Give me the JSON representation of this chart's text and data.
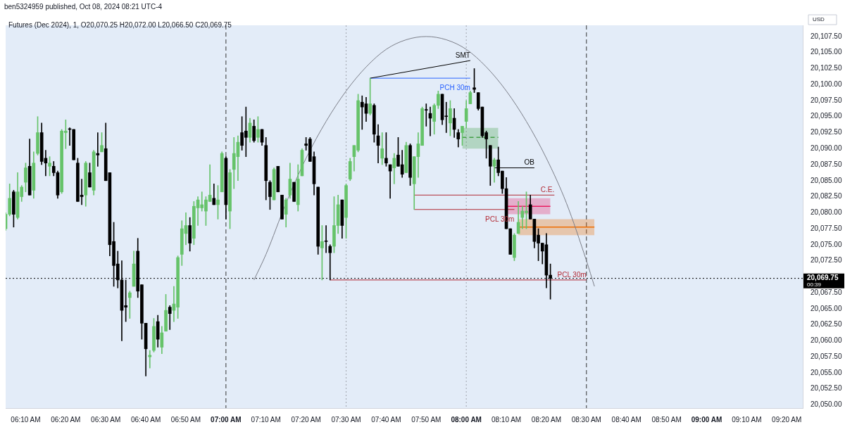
{
  "chart_data": {
    "type": "candlestick",
    "title": "ben5324959 published, Oct 08, 2024 08:21 UTC-4",
    "subtitle": "Futures (Dec 2024), 1, O20,070.25 H20,072.00 L20,066.50 C20,069.75",
    "ylabel": "USD",
    "x": [
      "2024-10-08T06:05",
      "2024-10-08T06:06",
      "2024-10-08T06:07",
      "2024-10-08T06:08",
      "2024-10-08T06:09",
      "2024-10-08T06:10",
      "2024-10-08T06:11",
      "2024-10-08T06:12",
      "2024-10-08T06:13",
      "2024-10-08T06:14",
      "2024-10-08T06:15",
      "2024-10-08T06:16",
      "2024-10-08T06:17",
      "2024-10-08T06:18",
      "2024-10-08T06:19",
      "2024-10-08T06:20",
      "2024-10-08T06:21",
      "2024-10-08T06:22",
      "2024-10-08T06:23",
      "2024-10-08T06:24",
      "2024-10-08T06:25",
      "2024-10-08T06:26",
      "2024-10-08T06:27",
      "2024-10-08T06:28",
      "2024-10-08T06:29",
      "2024-10-08T06:30",
      "2024-10-08T06:31",
      "2024-10-08T06:32",
      "2024-10-08T06:33",
      "2024-10-08T06:34",
      "2024-10-08T06:35",
      "2024-10-08T06:36",
      "2024-10-08T06:37",
      "2024-10-08T06:38",
      "2024-10-08T06:39",
      "2024-10-08T06:40",
      "2024-10-08T06:41",
      "2024-10-08T06:42",
      "2024-10-08T06:43",
      "2024-10-08T06:44",
      "2024-10-08T06:45",
      "2024-10-08T06:46",
      "2024-10-08T06:47",
      "2024-10-08T06:48",
      "2024-10-08T06:49",
      "2024-10-08T06:50",
      "2024-10-08T06:51",
      "2024-10-08T06:52",
      "2024-10-08T06:53",
      "2024-10-08T06:54",
      "2024-10-08T06:55",
      "2024-10-08T06:56",
      "2024-10-08T06:57",
      "2024-10-08T06:58",
      "2024-10-08T06:59",
      "2024-10-08T07:00",
      "2024-10-08T07:01",
      "2024-10-08T07:02",
      "2024-10-08T07:03",
      "2024-10-08T07:04",
      "2024-10-08T07:05",
      "2024-10-08T07:06",
      "2024-10-08T07:07",
      "2024-10-08T07:08",
      "2024-10-08T07:09",
      "2024-10-08T07:10",
      "2024-10-08T07:11",
      "2024-10-08T07:12",
      "2024-10-08T07:13",
      "2024-10-08T07:14",
      "2024-10-08T07:15",
      "2024-10-08T07:16",
      "2024-10-08T07:17",
      "2024-10-08T07:18",
      "2024-10-08T07:19",
      "2024-10-08T07:20",
      "2024-10-08T07:21",
      "2024-10-08T07:22",
      "2024-10-08T07:23",
      "2024-10-08T07:24",
      "2024-10-08T07:25",
      "2024-10-08T07:26",
      "2024-10-08T07:27",
      "2024-10-08T07:28",
      "2024-10-08T07:29",
      "2024-10-08T07:30",
      "2024-10-08T07:31",
      "2024-10-08T07:32",
      "2024-10-08T07:33",
      "2024-10-08T07:34",
      "2024-10-08T07:35",
      "2024-10-08T07:36",
      "2024-10-08T07:37",
      "2024-10-08T07:38",
      "2024-10-08T07:39",
      "2024-10-08T07:40",
      "2024-10-08T07:41",
      "2024-10-08T07:42",
      "2024-10-08T07:43",
      "2024-10-08T07:44",
      "2024-10-08T07:45",
      "2024-10-08T07:46",
      "2024-10-08T07:47",
      "2024-10-08T07:48",
      "2024-10-08T07:49",
      "2024-10-08T07:50",
      "2024-10-08T07:51",
      "2024-10-08T07:52",
      "2024-10-08T07:53",
      "2024-10-08T07:54",
      "2024-10-08T07:55",
      "2024-10-08T07:56",
      "2024-10-08T07:57",
      "2024-10-08T07:58",
      "2024-10-08T07:59",
      "2024-10-08T08:00",
      "2024-10-08T08:01",
      "2024-10-08T08:02",
      "2024-10-08T08:03",
      "2024-10-08T08:04",
      "2024-10-08T08:05",
      "2024-10-08T08:06",
      "2024-10-08T08:07",
      "2024-10-08T08:08",
      "2024-10-08T08:09",
      "2024-10-08T08:10",
      "2024-10-08T08:11",
      "2024-10-08T08:12",
      "2024-10-08T08:13",
      "2024-10-08T08:14",
      "2024-10-08T08:15",
      "2024-10-08T08:16",
      "2024-10-08T08:17",
      "2024-10-08T08:18",
      "2024-10-08T08:19",
      "2024-10-08T08:20",
      "2024-10-08T08:21"
    ],
    "ohlc": [
      [
        20077.5,
        20080.0,
        20077.25,
        20079.75
      ],
      [
        20079.75,
        20084.5,
        20079.5,
        20082.25
      ],
      [
        20083.25,
        20083.5,
        20077.75,
        20079.75
      ],
      [
        20079.25,
        20086.25,
        20079.0,
        20083.25
      ],
      [
        20082.5,
        20084.25,
        20081.75,
        20084.0
      ],
      [
        20084.75,
        20087.75,
        20083.25,
        20087.0
      ],
      [
        20087.25,
        20091.5,
        20082.75,
        20082.75
      ],
      [
        20083.5,
        20089.5,
        20082.25,
        20087.75
      ],
      [
        20089.25,
        20095.0,
        20089.0,
        20092.5
      ],
      [
        20092.5,
        20094.0,
        20087.5,
        20088.0
      ],
      [
        20088.5,
        20089.75,
        20085.75,
        20087.75
      ],
      [
        20087.25,
        20088.75,
        20085.75,
        20087.75
      ],
      [
        20087.25,
        20088.0,
        20085.75,
        20086.25
      ],
      [
        20086.25,
        20086.5,
        20082.25,
        20082.75
      ],
      [
        20083.25,
        20093.0,
        20083.0,
        20092.75
      ],
      [
        20092.5,
        20094.5,
        20090.0,
        20092.75
      ],
      [
        20093.0,
        20093.25,
        20090.5,
        20093.0
      ],
      [
        20093.0,
        20093.0,
        20088.25,
        20088.25
      ],
      [
        20087.75,
        20088.5,
        20081.75,
        20081.75
      ],
      [
        20082.75,
        20085.25,
        20081.25,
        20082.5
      ],
      [
        20082.75,
        20088.0,
        20081.0,
        20087.75
      ],
      [
        20086.25,
        20087.75,
        20084.0,
        20084.0
      ],
      [
        20083.5,
        20089.75,
        20082.75,
        20089.5
      ],
      [
        20089.25,
        20092.5,
        20087.25,
        20089.0
      ],
      [
        20089.5,
        20092.5,
        20089.5,
        20090.5
      ],
      [
        20090.0,
        20094.0,
        20085.0,
        20085.0
      ],
      [
        20086.25,
        20086.25,
        20073.25,
        20075.0
      ],
      [
        20075.5,
        20078.5,
        20068.5,
        20071.75
      ],
      [
        20072.0,
        20074.0,
        20068.25,
        20069.5
      ],
      [
        20069.5,
        20072.5,
        20060.0,
        20064.75
      ],
      [
        20065.5,
        20069.5,
        20063.0,
        20065.25
      ],
      [
        20066.75,
        20067.75,
        20063.5,
        20067.5
      ],
      [
        20068.5,
        20074.0,
        20068.5,
        20072.0
      ],
      [
        20074.0,
        20076.0,
        20066.75,
        20067.75
      ],
      [
        20068.75,
        20068.75,
        20060.25,
        20062.75
      ],
      [
        20062.75,
        20062.75,
        20054.5,
        20058.75
      ],
      [
        20057.5,
        20058.5,
        20055.75,
        20057.75
      ],
      [
        20058.5,
        20063.5,
        20058.25,
        20062.25
      ],
      [
        20063.0,
        20064.0,
        20059.0,
        20060.25
      ],
      [
        20059.0,
        20062.25,
        20058.0,
        20061.25
      ],
      [
        20061.5,
        20067.25,
        20061.5,
        20064.75
      ],
      [
        20065.25,
        20065.5,
        20061.75,
        20064.25
      ],
      [
        20064.75,
        20068.5,
        20063.0,
        20065.75
      ],
      [
        20065.25,
        20073.25,
        20063.5,
        20073.0
      ],
      [
        20073.5,
        20078.75,
        20071.75,
        20077.5
      ],
      [
        20076.75,
        20080.0,
        20075.0,
        20078.0
      ],
      [
        20078.0,
        20079.25,
        20074.0,
        20075.25
      ],
      [
        20076.0,
        20081.75,
        20075.0,
        20081.0
      ],
      [
        20080.75,
        20082.5,
        20078.0,
        20082.0
      ],
      [
        20080.75,
        20083.25,
        20080.25,
        20081.25
      ],
      [
        20080.25,
        20082.5,
        20078.0,
        20082.0
      ],
      [
        20081.75,
        20087.5,
        20081.75,
        20082.75
      ],
      [
        20082.25,
        20084.5,
        20081.25,
        20081.25
      ],
      [
        20081.25,
        20084.25,
        20079.0,
        20082.0
      ],
      [
        20083.25,
        20089.5,
        20083.25,
        20089.25
      ],
      [
        20088.5,
        20088.75,
        20079.0,
        20081.25
      ],
      [
        20080.25,
        20086.75,
        20077.5,
        20086.25
      ],
      [
        20086.75,
        20091.75,
        20083.75,
        20089.25
      ],
      [
        20088.75,
        20092.0,
        20085.0,
        20091.0
      ],
      [
        20092.5,
        20095.0,
        20089.75,
        20090.5
      ],
      [
        20092.75,
        20096.5,
        20088.75,
        20091.75
      ],
      [
        20091.75,
        20094.75,
        20091.0,
        20094.0
      ],
      [
        20093.5,
        20094.5,
        20091.0,
        20091.25
      ],
      [
        20091.75,
        20095.0,
        20091.0,
        20093.0
      ],
      [
        20093.0,
        20093.0,
        20090.5,
        20091.0
      ],
      [
        20090.5,
        20091.75,
        20082.0,
        20085.0
      ],
      [
        20084.75,
        20085.0,
        20080.5,
        20082.5
      ],
      [
        20082.0,
        20087.0,
        20082.0,
        20086.75
      ],
      [
        20087.25,
        20087.25,
        20083.25,
        20083.25
      ],
      [
        20082.75,
        20082.75,
        20079.0,
        20079.0
      ],
      [
        20079.75,
        20082.25,
        20077.75,
        20082.0
      ],
      [
        20082.75,
        20087.75,
        20082.25,
        20085.25
      ],
      [
        20084.75,
        20084.75,
        20081.75,
        20081.75
      ],
      [
        20081.25,
        20087.5,
        20080.25,
        20085.25
      ],
      [
        20085.75,
        20090.0,
        20085.75,
        20089.75
      ],
      [
        20090.75,
        20091.75,
        20089.75,
        20090.5
      ],
      [
        20091.5,
        20091.75,
        20088.0,
        20088.0
      ],
      [
        20088.75,
        20089.5,
        20082.75,
        20084.5
      ],
      [
        20084.0,
        20084.0,
        20073.5,
        20074.75
      ],
      [
        20074.5,
        20078.0,
        20069.5,
        20075.5
      ],
      [
        20075.5,
        20078.0,
        20073.75,
        20075.5
      ],
      [
        20074.75,
        20075.0,
        20069.5,
        20073.75
      ],
      [
        20074.75,
        20082.5,
        20073.75,
        20078.0
      ],
      [
        20078.0,
        20082.75,
        20076.75,
        20081.25
      ],
      [
        20082.0,
        20082.0,
        20076.0,
        20078.0
      ],
      [
        20079.25,
        20084.5,
        20076.0,
        20084.25
      ],
      [
        20085.25,
        20088.5,
        20085.0,
        20088.0
      ],
      [
        20088.75,
        20090.5,
        20086.5,
        20090.5
      ],
      [
        20089.75,
        20098.5,
        20089.5,
        20097.5
      ],
      [
        20097.25,
        20098.25,
        20093.0,
        20096.5
      ],
      [
        20097.0,
        20098.0,
        20094.25,
        20095.5
      ],
      [
        20095.5,
        20101.0,
        20095.25,
        20097.0
      ],
      [
        20096.75,
        20097.0,
        20091.0,
        20092.25
      ],
      [
        20092.0,
        20093.75,
        20087.75,
        20090.5
      ],
      [
        20088.5,
        20092.5,
        20087.5,
        20090.0
      ],
      [
        20088.5,
        20092.5,
        20087.25,
        20087.75
      ],
      [
        20087.5,
        20087.5,
        20082.25,
        20086.5
      ],
      [
        20087.0,
        20089.25,
        20084.5,
        20088.5
      ],
      [
        20089.0,
        20091.75,
        20087.25,
        20087.25
      ],
      [
        20087.5,
        20089.75,
        20085.5,
        20086.0
      ],
      [
        20086.25,
        20091.0,
        20086.25,
        20090.5
      ],
      [
        20090.5,
        20090.75,
        20084.25,
        20085.5
      ],
      [
        20084.5,
        20088.75,
        20080.5,
        20088.75
      ],
      [
        20088.75,
        20092.5,
        20085.5,
        20090.75
      ],
      [
        20090.5,
        20096.5,
        20090.5,
        20096.25
      ],
      [
        20096.0,
        20097.0,
        20093.5,
        20096.0
      ],
      [
        20095.5,
        20096.5,
        20092.0,
        20094.75
      ],
      [
        20094.25,
        20097.0,
        20092.25,
        20096.75
      ],
      [
        20096.75,
        20099.0,
        20096.25,
        20098.5
      ],
      [
        20098.5,
        20098.5,
        20093.75,
        20094.5
      ],
      [
        20095.0,
        20097.25,
        20092.5,
        20095.0
      ],
      [
        20094.0,
        20097.5,
        20092.0,
        20096.25
      ],
      [
        20094.75,
        20096.25,
        20091.75,
        20093.0
      ],
      [
        20092.5,
        20093.0,
        20090.25,
        20091.5
      ],
      [
        20092.5,
        20093.5,
        20090.5,
        20093.5
      ],
      [
        20094.25,
        20097.5,
        20093.25,
        20096.25
      ],
      [
        20097.0,
        20099.0,
        20097.0,
        20098.75
      ],
      [
        20099.5,
        20102.5,
        20098.75,
        20099.25
      ],
      [
        20098.75,
        20098.75,
        20096.0,
        20096.25
      ],
      [
        20096.5,
        20096.5,
        20091.75,
        20092.0
      ],
      [
        20092.5,
        20092.75,
        20088.5,
        20091.5
      ],
      [
        20090.5,
        20090.5,
        20084.25,
        20087.25
      ],
      [
        20087.25,
        20088.5,
        20084.75,
        20088.25
      ],
      [
        20088.25,
        20090.25,
        20085.75,
        20086.25
      ],
      [
        20086.5,
        20086.5,
        20083.0,
        20083.75
      ],
      [
        20083.75,
        20085.5,
        20077.5,
        20077.5
      ],
      [
        20077.5,
        20077.5,
        20073.5,
        20073.5
      ],
      [
        20073.0,
        20076.75,
        20072.5,
        20076.5
      ],
      [
        20076.75,
        20081.75,
        20076.75,
        20078.5
      ],
      [
        20079.25,
        20081.0,
        20077.5,
        20080.25
      ],
      [
        20080.0,
        20083.25,
        20077.5,
        20080.25
      ],
      [
        20081.25,
        20082.75,
        20079.0,
        20079.0
      ],
      [
        20079.0,
        20079.0,
        20074.5,
        20075.5
      ],
      [
        20076.5,
        20077.5,
        20072.5,
        20075.25
      ],
      [
        20075.25,
        20075.25,
        20072.0,
        20074.0
      ],
      [
        20075.0,
        20076.75,
        20068.25,
        20070.25
      ],
      [
        20070.25,
        20072.0,
        20066.5,
        20069.75
      ]
    ],
    "colors": [
      "#66c36a",
      "#66c36a",
      "#000000",
      "#66c36a",
      "#66c36a",
      "#66c36a",
      "#000000",
      "#66c36a",
      "#66c36a",
      "#000000",
      "#000000",
      "#66c36a",
      "#000000",
      "#000000",
      "#66c36a",
      "#66c36a",
      "#000000",
      "#000000",
      "#000000",
      "#000000",
      "#66c36a",
      "#000000",
      "#66c36a",
      "#000000",
      "#66c36a",
      "#000000",
      "#000000",
      "#000000",
      "#000000",
      "#000000",
      "#000000",
      "#66c36a",
      "#66c36a",
      "#000000",
      "#000000",
      "#000000",
      "#66c36a",
      "#66c36a",
      "#000000",
      "#66c36a",
      "#66c36a",
      "#000000",
      "#66c36a",
      "#66c36a",
      "#66c36a",
      "#66c36a",
      "#000000",
      "#66c36a",
      "#66c36a",
      "#66c36a",
      "#66c36a",
      "#66c36a",
      "#000000",
      "#66c36a",
      "#66c36a",
      "#000000",
      "#66c36a",
      "#66c36a",
      "#66c36a",
      "#000000",
      "#000000",
      "#66c36a",
      "#000000",
      "#66c36a",
      "#000000",
      "#000000",
      "#000000",
      "#66c36a",
      "#000000",
      "#000000",
      "#66c36a",
      "#66c36a",
      "#000000",
      "#66c36a",
      "#66c36a",
      "#000000",
      "#000000",
      "#000000",
      "#000000",
      "#66c36a",
      "#000000",
      "#000000",
      "#66c36a",
      "#66c36a",
      "#000000",
      "#66c36a",
      "#66c36a",
      "#66c36a",
      "#66c36a",
      "#000000",
      "#000000",
      "#66c36a",
      "#000000",
      "#000000",
      "#66c36a",
      "#000000",
      "#000000",
      "#66c36a",
      "#000000",
      "#000000",
      "#66c36a",
      "#000000",
      "#66c36a",
      "#66c36a",
      "#66c36a",
      "#000000",
      "#000000",
      "#66c36a",
      "#66c36a",
      "#000000",
      "#000000",
      "#66c36a",
      "#000000",
      "#000000",
      "#66c36a",
      "#66c36a",
      "#66c36a",
      "#000000",
      "#000000",
      "#000000",
      "#000000",
      "#000000",
      "#66c36a",
      "#000000",
      "#000000",
      "#000000",
      "#000000",
      "#66c36a",
      "#66c36a",
      "#66c36a",
      "#66c36a",
      "#000000",
      "#000000",
      "#000000",
      "#000000",
      "#000000",
      "#000000"
    ],
    "series": [
      {
        "type": "line",
        "color": "#43a047",
        "x": [
          "2024-10-08T07:59",
          "2024-10-08T08:08"
        ],
        "values": [
          20091.75,
          20091.75
        ],
        "lower": [
          20090.0,
          20090.0
        ],
        "upper": [
          20093.25,
          20093.25
        ],
        "line_style": "dashed"
      },
      {
        "type": "line",
        "color": "#e91e63",
        "x": [
          "2024-10-08T08:10",
          "2024-10-08T08:21"
        ],
        "values": [
          20081.0,
          20081.0
        ],
        "lower": [
          20079.75,
          20079.75
        ],
        "upper": [
          20082.25,
          20082.25
        ]
      },
      {
        "type": "line",
        "color": "#ef6c00",
        "x": [
          "2024-10-08T08:13",
          "2024-10-08T08:32"
        ],
        "values": [
          20077.75,
          20077.75
        ],
        "lower": [
          20076.5,
          20076.5
        ],
        "upper": [
          20079.0,
          20079.0
        ]
      },
      {
        "type": "line",
        "color": "#7b7e88",
        "x": [
          "2024-10-08T07:07",
          "2024-10-08T07:10",
          "2024-10-08T07:15",
          "2024-10-08T07:20",
          "2024-10-08T07:25",
          "2024-10-08T07:30",
          "2024-10-08T07:35",
          "2024-10-08T07:40",
          "2024-10-08T07:45",
          "2024-10-08T07:50",
          "2024-10-08T07:55",
          "2024-10-08T08:00",
          "2024-10-08T08:05",
          "2024-10-08T08:10",
          "2024-10-08T08:15",
          "2024-10-08T08:20",
          "2024-10-08T08:25",
          "2024-10-08T08:30",
          "2024-10-08T08:32"
        ],
        "values": [
          20069.5,
          20073.5,
          20081.5,
          20088.5,
          20094.25,
          20099.0,
          20102.75,
          20105.5,
          20107.0,
          20107.5,
          20107.0,
          20105.5,
          20102.75,
          20099.0,
          20094.25,
          20088.5,
          20081.5,
          20072.5,
          20068.5
        ]
      },
      {
        "type": "line",
        "name": "SMT",
        "color": "#000000",
        "x": [
          "2024-10-08T07:36",
          "2024-10-08T08:01"
        ],
        "values": [
          20101.0,
          20103.75
        ]
      },
      {
        "type": "line",
        "name": "PCH 30m",
        "color": "#2962ff",
        "x": [
          "2024-10-08T07:36",
          "2024-10-08T08:01"
        ],
        "values": [
          20101.0,
          20101.0
        ]
      },
      {
        "type": "line",
        "name": "OB",
        "color": "#000000",
        "x": [
          "2024-10-08T08:07",
          "2024-10-08T08:17"
        ],
        "values": [
          20087.0,
          20087.0
        ]
      },
      {
        "type": "line",
        "name": "C.E.",
        "color": "#b22833",
        "x": [
          "2024-10-08T07:47",
          "2024-10-08T08:22"
        ],
        "values": [
          20082.75,
          20082.75
        ]
      },
      {
        "type": "line",
        "name": "PCL 30m",
        "color": "#b22833",
        "x": [
          "2024-10-08T07:47",
          "2024-10-08T08:12"
        ],
        "values": [
          20080.5,
          20080.5
        ]
      },
      {
        "type": "line",
        "name": "PCL 30m",
        "color": "#b22833",
        "x": [
          "2024-10-08T07:26",
          "2024-10-08T08:30"
        ],
        "values": [
          20069.5,
          20069.5
        ]
      }
    ],
    "ref_lines": [
      {
        "axis": "x",
        "value": "2024-10-08T07:00",
        "color": "#333333",
        "line_style": "dashed"
      },
      {
        "axis": "x",
        "value": "2024-10-08T07:30",
        "color": "#a0a4ad",
        "line_style": "dotted"
      },
      {
        "axis": "x",
        "value": "2024-10-08T08:00",
        "color": "#a0a4ad",
        "line_style": "dotted"
      },
      {
        "axis": "x",
        "value": "2024-10-08T08:30",
        "color": "#333333",
        "line_style": "dashed"
      },
      {
        "axis": "y",
        "value": 20069.75,
        "label": "20,069.75",
        "color": "#000000",
        "line_style": "dotted"
      }
    ],
    "annotations": [
      "00:39"
    ],
    "xlim": [
      "2024-10-08T06:05",
      "2024-10-08T09:24"
    ],
    "xticks": [
      {
        "value": "2024-10-08T06:10",
        "label": "06:10 AM"
      },
      {
        "value": "2024-10-08T06:20",
        "label": "06:20 AM"
      },
      {
        "value": "2024-10-08T06:30",
        "label": "06:30 AM"
      },
      {
        "value": "2024-10-08T06:40",
        "label": "06:40 AM"
      },
      {
        "value": "2024-10-08T06:50",
        "label": "06:50 AM"
      },
      {
        "value": "2024-10-08T07:00",
        "label": "07:00 AM"
      },
      {
        "value": "2024-10-08T07:10",
        "label": "07:10 AM"
      },
      {
        "value": "2024-10-08T07:20",
        "label": "07:20 AM"
      },
      {
        "value": "2024-10-08T07:30",
        "label": "07:30 AM"
      },
      {
        "value": "2024-10-08T07:40",
        "label": "07:40 AM"
      },
      {
        "value": "2024-10-08T07:50",
        "label": "07:50 AM"
      },
      {
        "value": "2024-10-08T08:00",
        "label": "08:00 AM"
      },
      {
        "value": "2024-10-08T08:10",
        "label": "08:10 AM"
      },
      {
        "value": "2024-10-08T08:20",
        "label": "08:20 AM"
      },
      {
        "value": "2024-10-08T08:30",
        "label": "08:30 AM"
      },
      {
        "value": "2024-10-08T08:40",
        "label": "08:40 AM"
      },
      {
        "value": "2024-10-08T08:50",
        "label": "08:50 AM"
      },
      {
        "value": "2024-10-08T09:00",
        "label": "09:00 AM"
      },
      {
        "value": "2024-10-08T09:10",
        "label": "09:10 AM"
      },
      {
        "value": "2024-10-08T09:20",
        "label": "09:20 AM"
      }
    ],
    "ylim": [
      20049.5,
      20109.25
    ],
    "yticks": [
      {
        "value": 20050,
        "label": "20,050.00"
      },
      {
        "value": 20052.5,
        "label": "20,052.50"
      },
      {
        "value": 20055,
        "label": "20,055.00"
      },
      {
        "value": 20057.5,
        "label": "20,057.50"
      },
      {
        "value": 20060,
        "label": "20,060.00"
      },
      {
        "value": 20062.5,
        "label": "20,062.50"
      },
      {
        "value": 20065,
        "label": "20,065.00"
      },
      {
        "value": 20067.5,
        "label": "20,067.50"
      },
      {
        "value": 20072.5,
        "label": "20,072.50"
      },
      {
        "value": 20075,
        "label": "20,075.00"
      },
      {
        "value": 20077.5,
        "label": "20,077.50"
      },
      {
        "value": 20080,
        "label": "20,080.00"
      },
      {
        "value": 20082.5,
        "label": "20,082.50"
      },
      {
        "value": 20085,
        "label": "20,085.00"
      },
      {
        "value": 20087.5,
        "label": "20,087.50"
      },
      {
        "value": 20090,
        "label": "20,090.00"
      },
      {
        "value": 20092.5,
        "label": "20,092.50"
      },
      {
        "value": 20095,
        "label": "20,095.00"
      },
      {
        "value": 20097.5,
        "label": "20,097.50"
      },
      {
        "value": 20100,
        "label": "20,100.00"
      },
      {
        "value": 20102.5,
        "label": "20,102.50"
      },
      {
        "value": 20105,
        "label": "20,105.00"
      },
      {
        "value": 20107.5,
        "label": "20,107.50"
      }
    ],
    "grid": false,
    "legend": false
  }
}
